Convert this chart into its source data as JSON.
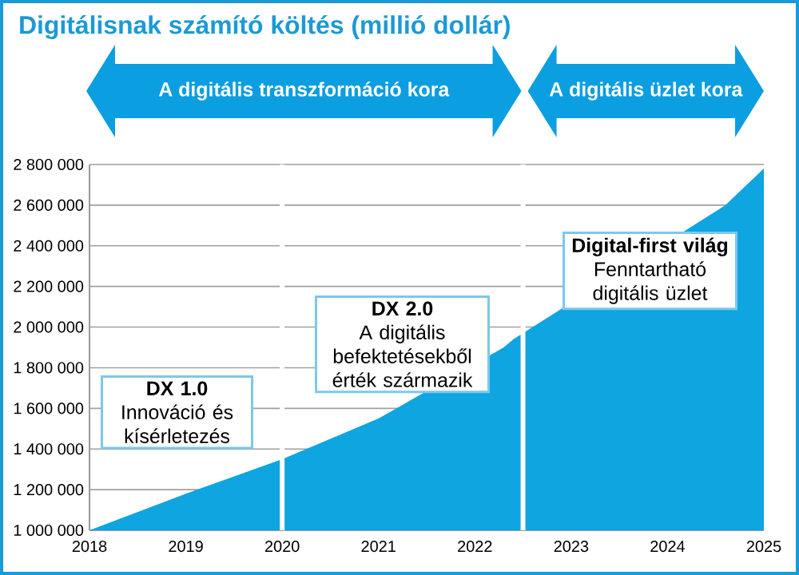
{
  "chart_data": {
    "type": "area",
    "title": "Digitálisnak számító költés (millió dollár)",
    "x": [
      2018,
      2019,
      2020,
      2021,
      2022.3,
      2022.4,
      2024.6,
      2025
    ],
    "series": [
      {
        "color": "#0ea5e0",
        "values": [
          1000000,
          1180000,
          1350000,
          1550000,
          1900000,
          1940000,
          2600000,
          2780000
        ]
      }
    ],
    "xlim": [
      2018,
      2025
    ],
    "xticks": [
      2018,
      2019,
      2020,
      2021,
      2022,
      2023,
      2024,
      2025
    ],
    "ylim": [
      1000000,
      2800000
    ],
    "yticks": [
      {
        "value": 1000000,
        "label": "1 000 000"
      },
      {
        "value": 1200000,
        "label": "1 200 000"
      },
      {
        "value": 1400000,
        "label": "1 400 000"
      },
      {
        "value": 1600000,
        "label": "1 600 000"
      },
      {
        "value": 1800000,
        "label": "1 800 000"
      },
      {
        "value": 2000000,
        "label": "2 000 000"
      },
      {
        "value": 2200000,
        "label": "2 200 000"
      },
      {
        "value": 2400000,
        "label": "2 400 000"
      },
      {
        "value": 2600000,
        "label": "2 600 000"
      },
      {
        "value": 2800000,
        "label": "2 800 000"
      }
    ],
    "grid": "y",
    "ref_lines": [
      {
        "axis": "x",
        "value": 2020,
        "color": "#ffffff"
      },
      {
        "axis": "x",
        "value": 2022.5,
        "color": "#ffffff"
      }
    ],
    "annotations": [
      "A digitális transzformáció kora",
      "A digitális üzlet kora",
      "DX 1.0",
      "Innováció és kísérletezés",
      "DX 2.0",
      "A digitális befektetésekből érték származik",
      "Digital-first világ",
      "Fenntartható digitális üzlet"
    ]
  }
}
